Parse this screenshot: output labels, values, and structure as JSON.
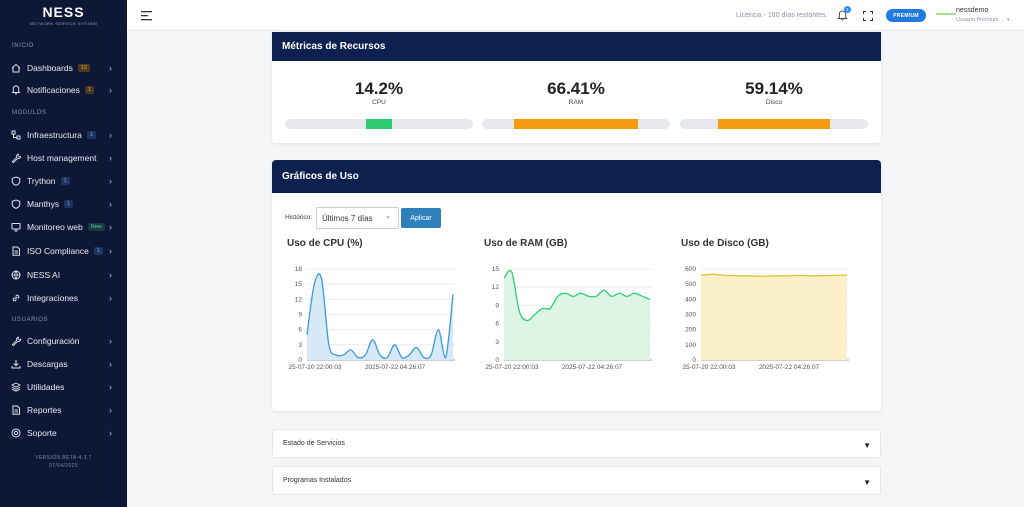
{
  "brand": {
    "name": "NESS",
    "tagline": "NETWORK SERVICE SYSTEM"
  },
  "sidebar": {
    "sections": [
      "INICIO",
      "MODULOS",
      "USUARIOS"
    ],
    "items": [
      {
        "label": "Dashboards",
        "badge": "12",
        "badge_style": "orange",
        "icon": "home-icon"
      },
      {
        "label": "Notificaciones",
        "badge": "1",
        "badge_style": "orange",
        "icon": "bell-icon"
      },
      {
        "label": "Infraestructura",
        "badge": "1",
        "badge_style": "blue",
        "icon": "network-icon"
      },
      {
        "label": "Host management",
        "badge": "",
        "badge_style": "",
        "icon": "wrench-icon"
      },
      {
        "label": "Trython",
        "badge": "1",
        "badge_style": "blue",
        "icon": "shield-icon"
      },
      {
        "label": "Manthys",
        "badge": "1",
        "badge_style": "blue",
        "icon": "shield-icon"
      },
      {
        "label": "Monitoreo web",
        "badge": "New",
        "badge_style": "new",
        "icon": "monitor-icon"
      },
      {
        "label": "ISO Compliance",
        "badge": "1",
        "badge_style": "blue",
        "icon": "document-icon"
      },
      {
        "label": "NESS AI",
        "badge": "",
        "badge_style": "",
        "icon": "globe-icon"
      },
      {
        "label": "Integraciones",
        "badge": "",
        "badge_style": "",
        "icon": "link-icon"
      },
      {
        "label": "Configuración",
        "badge": "",
        "badge_style": "",
        "icon": "wrench-icon"
      },
      {
        "label": "Descargas",
        "badge": "",
        "badge_style": "",
        "icon": "download-icon"
      },
      {
        "label": "Utilidades",
        "badge": "",
        "badge_style": "",
        "icon": "layers-icon"
      },
      {
        "label": "Reportes",
        "badge": "",
        "badge_style": "",
        "icon": "document-icon"
      },
      {
        "label": "Soporte",
        "badge": "",
        "badge_style": "",
        "icon": "support-icon"
      }
    ],
    "version": "VERSIÓN BETA-4.3.7",
    "version_date": "07/04/2025"
  },
  "header": {
    "license": "Licencia - 180 días restantes.",
    "notifications_count": "1",
    "premium_label": "PREMIUM",
    "user_name": "nessdemo",
    "user_role": "Usuario Premium",
    "user_logo": "nessdemo"
  },
  "resources": {
    "title": "Métricas de Recursos",
    "metrics": [
      {
        "value": "14.2%",
        "label": "CPU",
        "percent": 14.2,
        "color": "#2ecc71"
      },
      {
        "value": "66.41%",
        "label": "RAM",
        "percent": 66.41,
        "color": "#f39c12"
      },
      {
        "value": "59.14%",
        "label": "Disco",
        "percent": 59.14,
        "color": "#f39c12"
      }
    ]
  },
  "usage": {
    "title": "Gráficos de Uso",
    "history_label": "Histórico:",
    "range_value": "Últimos 7 días",
    "apply_label": "Aplicar",
    "charts": [
      {
        "title": "Uso de CPU (%)",
        "color": "#3b9bd9",
        "fill": "#d7e9f7"
      },
      {
        "title": "Uso de RAM (GB)",
        "color": "#2ecc71",
        "fill": "#dcf5e4"
      },
      {
        "title": "Uso de Disco (GB)",
        "color": "#e2c23a",
        "fill": "#fbf0c8"
      }
    ]
  },
  "chart_data": [
    {
      "type": "area",
      "title": "Uso de CPU (%)",
      "ylim": [
        0,
        18
      ],
      "yticks": [
        "18",
        "15",
        "12",
        "9",
        "6",
        "3",
        "0"
      ],
      "xticks": [
        "25-07-20 22:00:03",
        "2025-07-22 04:26:07"
      ],
      "values": [
        5,
        15,
        16,
        3,
        1,
        1,
        2,
        0.5,
        1,
        4,
        1,
        0.5,
        3,
        0.5,
        1,
        2.5,
        0.5,
        1,
        6,
        0.5,
        13
      ]
    },
    {
      "type": "area",
      "title": "Uso de RAM (GB)",
      "ylim": [
        0,
        15
      ],
      "yticks": [
        "15",
        "12",
        "9",
        "6",
        "3",
        "0"
      ],
      "xticks": [
        "25-07-20 22:00:03",
        "2025-07-22 04:26:07"
      ],
      "values": [
        13.5,
        14.5,
        8,
        6.5,
        7.5,
        8.5,
        8.5,
        10.5,
        11,
        10.5,
        11,
        10.5,
        10.5,
        11.5,
        10.5,
        11,
        10.5,
        11,
        10.5,
        10
      ],
      "x_labels": [
        "25-07-20 22:00:03",
        "2025-07-22 04:26:07"
      ]
    },
    {
      "type": "area",
      "title": "Uso de Disco (GB)",
      "ylim": [
        0,
        600
      ],
      "yticks": [
        "600",
        "500",
        "400",
        "300",
        "200",
        "100",
        "0"
      ],
      "xticks": [
        "25-07-20 22:00:03",
        "2025-07-22 04:26:07"
      ],
      "values": [
        560,
        565,
        558,
        555,
        555,
        552,
        555,
        555,
        558,
        555,
        556,
        558,
        560
      ]
    }
  ],
  "accordions": [
    {
      "label": "Estado de Servicios"
    },
    {
      "label": "Programas Instalados"
    }
  ]
}
